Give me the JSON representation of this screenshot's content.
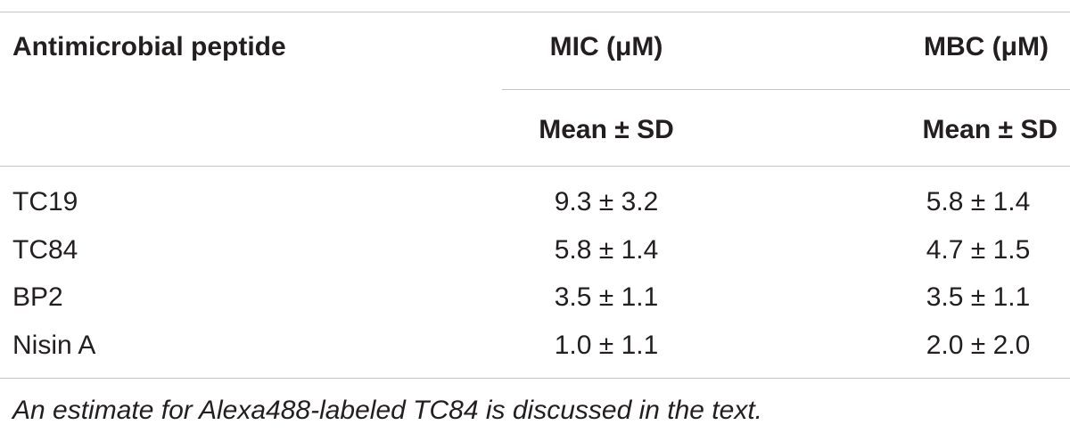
{
  "table": {
    "header": {
      "peptide_label": "Antimicrobial peptide",
      "mic_label": "MIC (μM)",
      "mbc_label": "MBC (μM)",
      "mic_sub": "Mean ± SD",
      "mbc_sub": "Mean ± SD"
    },
    "rows": [
      {
        "peptide": "TC19",
        "mic": "9.3 ± 3.2",
        "mbc": "5.8 ± 1.4"
      },
      {
        "peptide": "TC84",
        "mic": "5.8 ± 1.4",
        "mbc": "4.7 ± 1.5"
      },
      {
        "peptide": "BP2",
        "mic": "3.5 ± 1.1",
        "mbc": "3.5 ± 1.1"
      },
      {
        "peptide": "Nisin A",
        "mic": "1.0 ± 1.1",
        "mbc": "2.0 ± 2.0"
      }
    ],
    "footnote": "An estimate for Alexa488-labeled TC84 is discussed in the text."
  }
}
